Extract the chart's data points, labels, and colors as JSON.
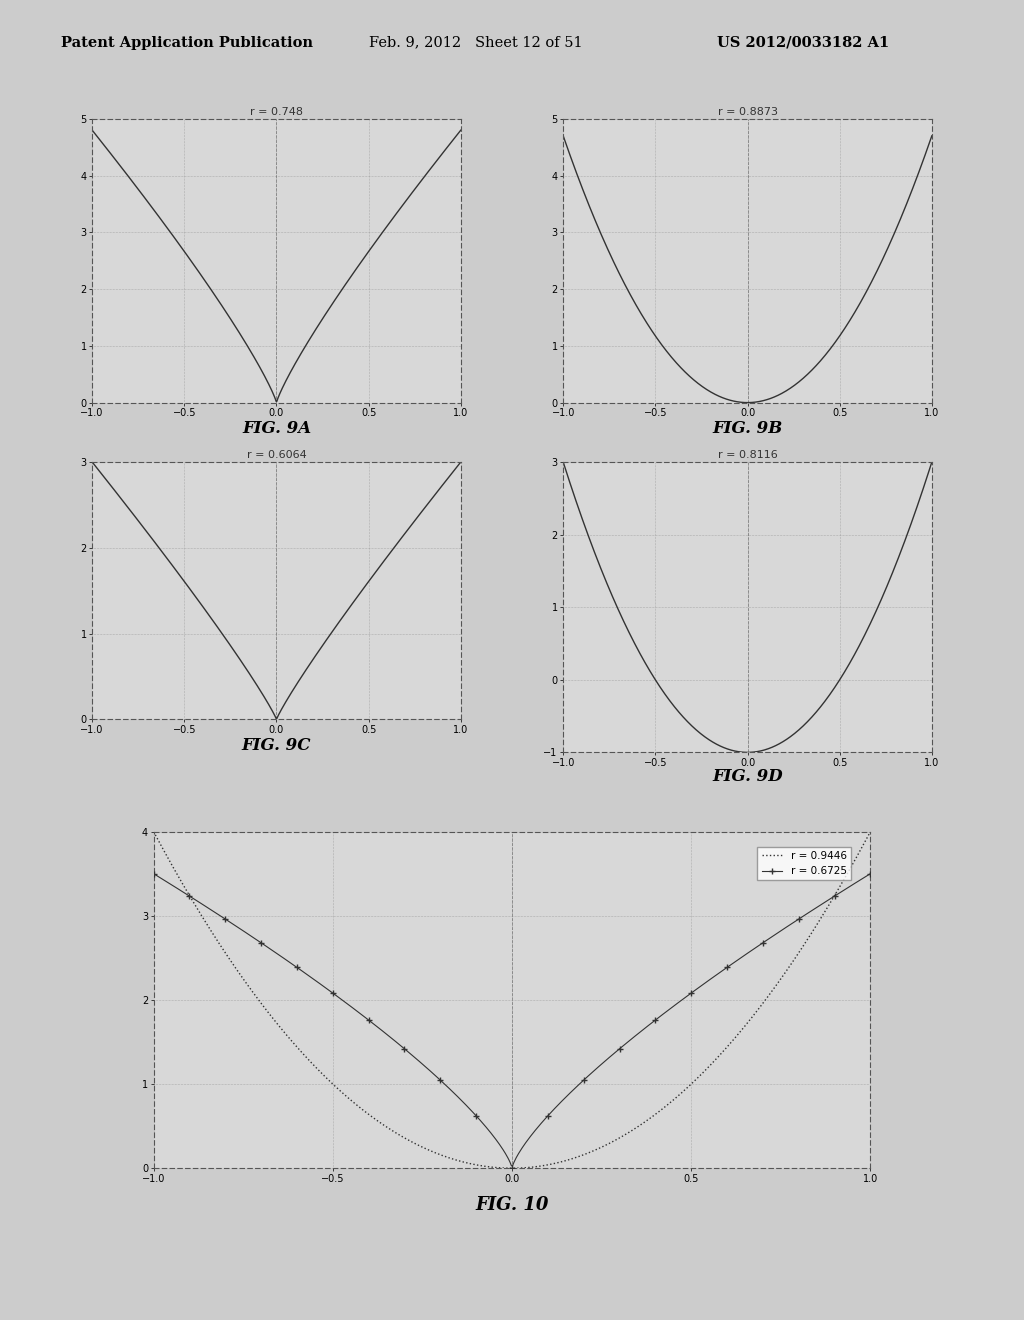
{
  "fig9A": {
    "r": 0.748,
    "label": "r = 0.748",
    "ylim": [
      0,
      5
    ],
    "yticks": [
      0,
      1,
      2,
      3,
      4,
      5
    ],
    "xlim": [
      -1,
      1
    ],
    "xticks": [
      -1,
      -0.5,
      0,
      0.5,
      1
    ],
    "caption": "FIG. 9A",
    "curve_scale": 4.8,
    "curve_power": 0.85
  },
  "fig9B": {
    "r": 0.8873,
    "label": "r = 0.8873",
    "ylim": [
      0,
      5
    ],
    "yticks": [
      0,
      1,
      2,
      3,
      4,
      5
    ],
    "xlim": [
      -1,
      1
    ],
    "xticks": [
      -1,
      -0.5,
      0,
      0.5,
      1
    ],
    "caption": "FIG. 9B",
    "curve_a": 4.7,
    "curve_b": 0.0
  },
  "fig9C": {
    "r": 0.6064,
    "label": "r = 0.6064",
    "ylim": [
      0,
      3
    ],
    "yticks": [
      0,
      1,
      2,
      3
    ],
    "xlim": [
      -1,
      1
    ],
    "xticks": [
      -1,
      -0.5,
      0,
      0.5,
      1
    ],
    "caption": "FIG. 9C",
    "curve_scale": 3.0,
    "curve_power": 0.9
  },
  "fig9D": {
    "r": 0.8116,
    "label": "r = 0.8116",
    "ylim": [
      -1,
      3
    ],
    "yticks": [
      -1,
      0,
      1,
      2,
      3
    ],
    "xlim": [
      -1,
      1
    ],
    "xticks": [
      -1,
      -0.5,
      0,
      0.5,
      1
    ],
    "caption": "FIG. 9D",
    "curve_a": 4.0,
    "curve_b": -1.0
  },
  "fig10": {
    "r1": 0.9446,
    "label1": "r = 0.9446",
    "r2": 0.6725,
    "label2": "r = 0.6725",
    "ylim": [
      0,
      4
    ],
    "yticks": [
      0,
      1,
      2,
      3,
      4
    ],
    "xlim": [
      -1,
      1
    ],
    "xticks": [
      -1,
      -0.5,
      0,
      0.5,
      1
    ],
    "caption": "FIG. 10",
    "curve1_a": 4.0,
    "curve2_scale": 3.5,
    "curve2_power": 0.75
  },
  "header_left": "Patent Application Publication",
  "header_mid": "Feb. 9, 2012   Sheet 12 of 51",
  "header_right": "US 2012/0033182 A1",
  "bg_color": "#cccccc",
  "plot_bg": "#d8d8d8",
  "line_color": "#333333",
  "grid_color": "#888888"
}
